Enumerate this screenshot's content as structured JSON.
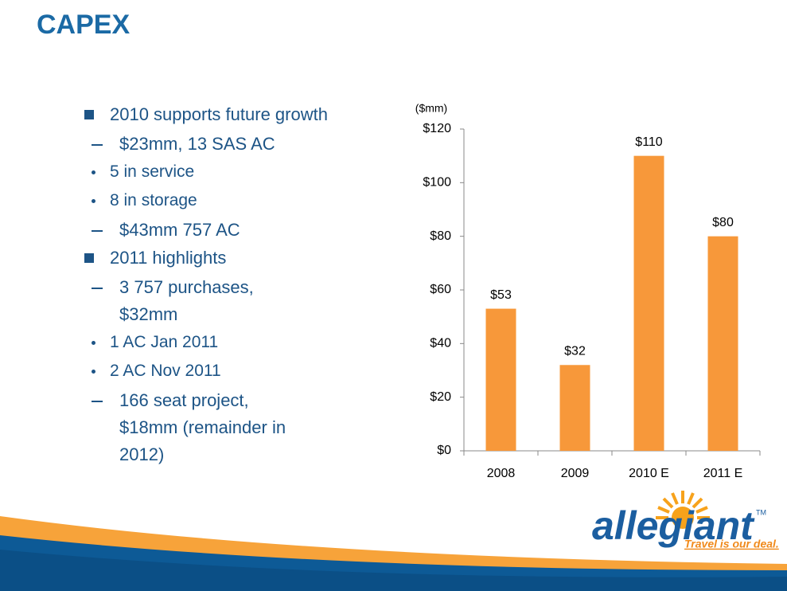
{
  "header": {
    "title": "CAPEX"
  },
  "bullets": [
    {
      "text": "2010 supports future growth",
      "items": [
        {
          "text": "$23mm, 13 SAS AC",
          "items": [
            {
              "text": "5 in service"
            },
            {
              "text": "8 in storage"
            }
          ]
        },
        {
          "text": "$43mm 757 AC"
        }
      ]
    },
    {
      "text": "2011 highlights",
      "items": [
        {
          "text": "3 757 purchases, $32mm",
          "items": [
            {
              "text": "1 AC Jan 2011"
            },
            {
              "text": "2 AC Nov 2011"
            }
          ]
        },
        {
          "text": "166 seat project, $18mm (remainder in 2012)"
        }
      ]
    }
  ],
  "chart_data": {
    "type": "bar",
    "y_label": "($mm)",
    "categories": [
      "2008",
      "2009",
      "2010 E",
      "2011 E"
    ],
    "values": [
      53,
      32,
      110,
      80
    ],
    "value_labels": [
      "$53",
      "$32",
      "$110",
      "$80"
    ],
    "color": "#f7983a",
    "ylim": [
      0,
      120
    ],
    "yticks": [
      {
        "value": 0,
        "label": "$0"
      },
      {
        "value": 20,
        "label": "$20"
      },
      {
        "value": 40,
        "label": "$40"
      },
      {
        "value": 60,
        "label": "$60"
      },
      {
        "value": 80,
        "label": "$80"
      },
      {
        "value": 100,
        "label": "$100"
      },
      {
        "value": 120,
        "label": "$120"
      }
    ],
    "grid": false
  },
  "logo": {
    "name": "allegiant",
    "tm": "TM",
    "tagline": "Travel is our deal."
  }
}
